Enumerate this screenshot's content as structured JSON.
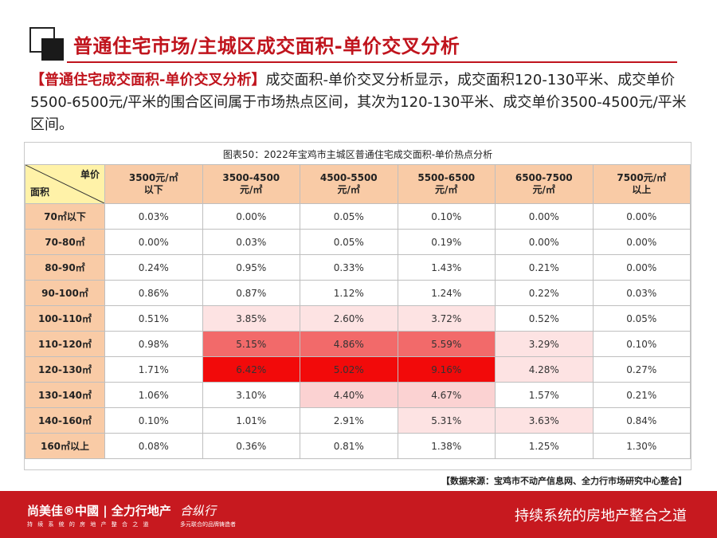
{
  "header": {
    "title": "普通住宅市场/主城区成交面积-单价交叉分析"
  },
  "intro": {
    "lead": "【普通住宅成交面积-单价交叉分析】",
    "text": "成交面积-单价交叉分析显示，成交面积120-130平米、成交单价5500-6500元/平米的围合区间属于市场热点区间，其次为120-130平米、成交单价3500-4500元/平米区间。"
  },
  "table": {
    "caption": "图表50：2022年宝鸡市主城区普通住宅成交面积-单价热点分析",
    "corner_top": "单价",
    "corner_bottom": "面积",
    "columns": [
      {
        "line1": "3500元/㎡",
        "line2": "以下"
      },
      {
        "line1": "3500-4500",
        "line2": "元/㎡"
      },
      {
        "line1": "4500-5500",
        "line2": "元/㎡"
      },
      {
        "line1": "5500-6500",
        "line2": "元/㎡"
      },
      {
        "line1": "6500-7500",
        "line2": "元/㎡"
      },
      {
        "line1": "7500元/㎡",
        "line2": "以上"
      }
    ],
    "rows": [
      {
        "label": "70㎡以下",
        "values": [
          "0.03%",
          "0.00%",
          "0.05%",
          "0.10%",
          "0.00%",
          "0.00%"
        ]
      },
      {
        "label": "70-80㎡",
        "values": [
          "0.00%",
          "0.03%",
          "0.05%",
          "0.19%",
          "0.00%",
          "0.00%"
        ]
      },
      {
        "label": "80-90㎡",
        "values": [
          "0.24%",
          "0.95%",
          "0.33%",
          "1.43%",
          "0.21%",
          "0.00%"
        ]
      },
      {
        "label": "90-100㎡",
        "values": [
          "0.86%",
          "0.87%",
          "1.12%",
          "1.24%",
          "0.22%",
          "0.03%"
        ]
      },
      {
        "label": "100-110㎡",
        "values": [
          "0.51%",
          "3.85%",
          "2.60%",
          "3.72%",
          "0.52%",
          "0.05%"
        ]
      },
      {
        "label": "110-120㎡",
        "values": [
          "0.98%",
          "5.15%",
          "4.86%",
          "5.59%",
          "3.29%",
          "0.10%"
        ]
      },
      {
        "label": "120-130㎡",
        "values": [
          "1.71%",
          "6.42%",
          "5.02%",
          "9.16%",
          "4.28%",
          "0.27%"
        ]
      },
      {
        "label": "130-140㎡",
        "values": [
          "1.06%",
          "3.10%",
          "4.40%",
          "4.67%",
          "1.57%",
          "0.21%"
        ]
      },
      {
        "label": "140-160㎡",
        "values": [
          "0.10%",
          "1.01%",
          "2.91%",
          "5.31%",
          "3.63%",
          "0.84%"
        ]
      },
      {
        "label": "160㎡以上",
        "values": [
          "0.08%",
          "0.36%",
          "0.81%",
          "1.38%",
          "1.25%",
          "1.30%"
        ]
      }
    ],
    "heat_colors": {
      "light": "#fde3e3",
      "mid": "#f5a5a5",
      "strong": "#f26a6a",
      "hot": "#f20a0a"
    }
  },
  "source": "【数据来源：宝鸡市不动产信息网、全力行市场研究中心整合】",
  "footer": {
    "brand": "尚美佳®中國 | 全力行地产",
    "brand_sub": "持 续 系 统 的 房 地 产 整 合 之 道",
    "brand2": "合纵行",
    "brand2_sub": "多元联合的品牌铸造者",
    "slogan": "持续系统的房地产整合之道"
  }
}
